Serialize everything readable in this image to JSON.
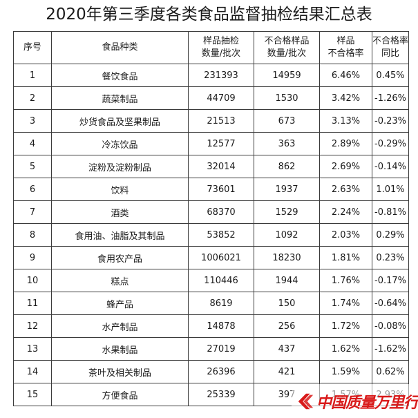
{
  "title": "2020年第三季度各类食品监督抽检结果汇总表",
  "headers": {
    "seq": "序号",
    "category": "食品种类",
    "samples_l1": "样品抽检",
    "samples_l2": "数量/批次",
    "unqualified_l1": "不合格样品",
    "unqualified_l2": "数量/批次",
    "rate_l1": "样品",
    "rate_l2": "不合格率",
    "yoy_l1": "不合格率",
    "yoy_l2": "同比"
  },
  "rows": [
    {
      "seq": "1",
      "category": "餐饮食品",
      "samples": "231393",
      "unqualified": "14959",
      "rate": "6.46%",
      "yoy": "0.45%"
    },
    {
      "seq": "2",
      "category": "蔬菜制品",
      "samples": "44709",
      "unqualified": "1530",
      "rate": "3.42%",
      "yoy": "-1.26%"
    },
    {
      "seq": "3",
      "category": "炒货食品及坚果制品",
      "samples": "21513",
      "unqualified": "673",
      "rate": "3.13%",
      "yoy": "-0.23%"
    },
    {
      "seq": "4",
      "category": "冷冻饮品",
      "samples": "12577",
      "unqualified": "363",
      "rate": "2.89%",
      "yoy": "-0.29%"
    },
    {
      "seq": "5",
      "category": "淀粉及淀粉制品",
      "samples": "32014",
      "unqualified": "862",
      "rate": "2.69%",
      "yoy": "-0.14%"
    },
    {
      "seq": "6",
      "category": "饮料",
      "samples": "73601",
      "unqualified": "1937",
      "rate": "2.63%",
      "yoy": "1.01%"
    },
    {
      "seq": "7",
      "category": "酒类",
      "samples": "68370",
      "unqualified": "1529",
      "rate": "2.24%",
      "yoy": "-0.81%"
    },
    {
      "seq": "8",
      "category": "食用油、油脂及其制品",
      "samples": "53852",
      "unqualified": "1092",
      "rate": "2.03%",
      "yoy": "0.29%"
    },
    {
      "seq": "9",
      "category": "食用农产品",
      "samples": "1006021",
      "unqualified": "18230",
      "rate": "1.81%",
      "yoy": "0.23%"
    },
    {
      "seq": "10",
      "category": "糕点",
      "samples": "110446",
      "unqualified": "1944",
      "rate": "1.76%",
      "yoy": "-0.17%"
    },
    {
      "seq": "11",
      "category": "蜂产品",
      "samples": "8619",
      "unqualified": "150",
      "rate": "1.74%",
      "yoy": "-0.64%"
    },
    {
      "seq": "12",
      "category": "水产制品",
      "samples": "14878",
      "unqualified": "256",
      "rate": "1.72%",
      "yoy": "-0.08%"
    },
    {
      "seq": "13",
      "category": "水果制品",
      "samples": "27019",
      "unqualified": "437",
      "rate": "1.62%",
      "yoy": "-1.62%"
    },
    {
      "seq": "14",
      "category": "茶叶及相关制品",
      "samples": "26396",
      "unqualified": "421",
      "rate": "1.59%",
      "yoy": "0.62%"
    },
    {
      "seq": "15",
      "category": "方便食品",
      "samples": "25339",
      "unqualified": "397",
      "rate": "1.57%",
      "yoy": "2.93%"
    }
  ],
  "watermark": {
    "text": "中国质量万里行",
    "logo_icon": "red-chevron-logo-icon",
    "color": "#d91a1a"
  }
}
